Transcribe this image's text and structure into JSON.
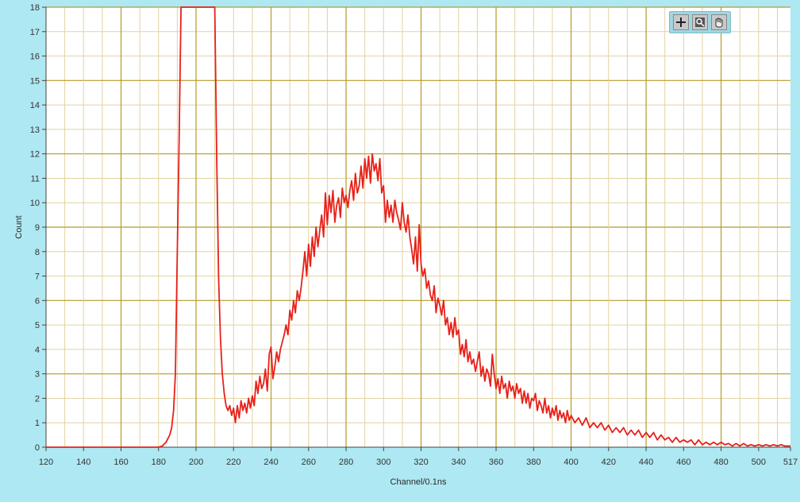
{
  "chart_data": {
    "type": "line",
    "title": "",
    "xlabel": "Channel/0.1ns",
    "ylabel": "Count",
    "xlim": [
      120,
      517
    ],
    "ylim": [
      0,
      18
    ],
    "grid": true,
    "x_ticks": [
      120,
      140,
      160,
      180,
      200,
      220,
      240,
      260,
      280,
      300,
      320,
      340,
      360,
      380,
      400,
      420,
      440,
      460,
      480,
      500,
      517
    ],
    "y_ticks": [
      0,
      1,
      2,
      3,
      4,
      5,
      6,
      7,
      8,
      9,
      10,
      11,
      12,
      13,
      14,
      15,
      16,
      17,
      18
    ],
    "series": [
      {
        "color": "#e8201a",
        "points": [
          [
            120,
            0
          ],
          [
            180,
            0
          ],
          [
            182,
            0.05
          ],
          [
            184,
            0.2
          ],
          [
            186,
            0.5
          ],
          [
            187,
            0.8
          ],
          [
            188,
            1.5
          ],
          [
            189,
            3
          ],
          [
            190,
            8
          ],
          [
            191,
            12.8
          ],
          [
            192,
            18
          ],
          [
            210,
            18
          ],
          [
            211,
            12
          ],
          [
            212,
            7
          ],
          [
            213,
            4.5
          ],
          [
            214,
            3
          ],
          [
            215,
            2.2
          ],
          [
            216,
            1.7
          ],
          [
            217,
            1.5
          ],
          [
            218,
            1.7
          ],
          [
            219,
            1.3
          ],
          [
            220,
            1.6
          ],
          [
            221,
            1.0
          ],
          [
            222,
            1.7
          ],
          [
            223,
            1.2
          ],
          [
            224,
            1.9
          ],
          [
            225,
            1.5
          ],
          [
            226,
            1.8
          ],
          [
            227,
            1.4
          ],
          [
            228,
            2.0
          ],
          [
            229,
            1.6
          ],
          [
            230,
            2.1
          ],
          [
            231,
            1.7
          ],
          [
            232,
            2.7
          ],
          [
            233,
            2.2
          ],
          [
            234,
            2.9
          ],
          [
            235,
            2.4
          ],
          [
            236,
            2.6
          ],
          [
            237,
            3.2
          ],
          [
            238,
            2.3
          ],
          [
            239,
            3.8
          ],
          [
            240,
            4.1
          ],
          [
            241,
            2.8
          ],
          [
            242,
            3.3
          ],
          [
            243,
            3.9
          ],
          [
            244,
            3.5
          ],
          [
            245,
            4.0
          ],
          [
            246,
            4.3
          ],
          [
            247,
            4.6
          ],
          [
            248,
            5.0
          ],
          [
            249,
            4.6
          ],
          [
            250,
            5.6
          ],
          [
            251,
            5.2
          ],
          [
            252,
            6.0
          ],
          [
            253,
            5.5
          ],
          [
            254,
            6.4
          ],
          [
            255,
            6.0
          ],
          [
            256,
            6.5
          ],
          [
            257,
            7.2
          ],
          [
            258,
            8.0
          ],
          [
            259,
            7.0
          ],
          [
            260,
            8.3
          ],
          [
            261,
            7.4
          ],
          [
            262,
            8.6
          ],
          [
            263,
            7.8
          ],
          [
            264,
            9.0
          ],
          [
            265,
            8.2
          ],
          [
            266,
            8.9
          ],
          [
            267,
            9.5
          ],
          [
            268,
            8.6
          ],
          [
            269,
            10.4
          ],
          [
            270,
            9.1
          ],
          [
            271,
            10.3
          ],
          [
            272,
            9.6
          ],
          [
            273,
            10.5
          ],
          [
            274,
            9.2
          ],
          [
            275,
            9.9
          ],
          [
            276,
            10.2
          ],
          [
            277,
            9.4
          ],
          [
            278,
            10.6
          ],
          [
            279,
            10.0
          ],
          [
            280,
            10.3
          ],
          [
            281,
            9.8
          ],
          [
            282,
            10.5
          ],
          [
            283,
            10.9
          ],
          [
            284,
            10.1
          ],
          [
            285,
            11.2
          ],
          [
            286,
            10.4
          ],
          [
            287,
            10.7
          ],
          [
            288,
            11.5
          ],
          [
            289,
            10.6
          ],
          [
            290,
            11.8
          ],
          [
            291,
            11.0
          ],
          [
            292,
            11.9
          ],
          [
            293,
            10.8
          ],
          [
            294,
            12.0
          ],
          [
            295,
            11.3
          ],
          [
            296,
            11.6
          ],
          [
            297,
            10.9
          ],
          [
            298,
            11.8
          ],
          [
            299,
            10.4
          ],
          [
            300,
            10.7
          ],
          [
            301,
            9.2
          ],
          [
            302,
            10.1
          ],
          [
            303,
            9.4
          ],
          [
            304,
            9.9
          ],
          [
            305,
            9.2
          ],
          [
            306,
            10.1
          ],
          [
            307,
            9.6
          ],
          [
            308,
            9.3
          ],
          [
            309,
            8.9
          ],
          [
            310,
            10.0
          ],
          [
            311,
            9.2
          ],
          [
            312,
            8.8
          ],
          [
            313,
            9.5
          ],
          [
            314,
            8.6
          ],
          [
            315,
            8.1
          ],
          [
            316,
            7.5
          ],
          [
            317,
            8.6
          ],
          [
            318,
            7.2
          ],
          [
            319,
            9.1
          ],
          [
            320,
            7.5
          ],
          [
            321,
            7.0
          ],
          [
            322,
            7.3
          ],
          [
            323,
            6.5
          ],
          [
            324,
            6.8
          ],
          [
            325,
            6.2
          ],
          [
            326,
            6.0
          ],
          [
            327,
            6.6
          ],
          [
            328,
            5.5
          ],
          [
            329,
            6.1
          ],
          [
            330,
            5.8
          ],
          [
            331,
            5.4
          ],
          [
            332,
            6.0
          ],
          [
            333,
            5.0
          ],
          [
            334,
            5.3
          ],
          [
            335,
            4.6
          ],
          [
            336,
            5.1
          ],
          [
            337,
            4.5
          ],
          [
            338,
            5.3
          ],
          [
            339,
            4.6
          ],
          [
            340,
            4.8
          ],
          [
            341,
            3.8
          ],
          [
            342,
            4.2
          ],
          [
            343,
            3.7
          ],
          [
            344,
            4.4
          ],
          [
            345,
            3.5
          ],
          [
            346,
            3.9
          ],
          [
            347,
            3.4
          ],
          [
            348,
            3.6
          ],
          [
            349,
            3.1
          ],
          [
            350,
            3.5
          ],
          [
            351,
            3.9
          ],
          [
            352,
            2.9
          ],
          [
            353,
            3.3
          ],
          [
            354,
            2.7
          ],
          [
            355,
            3.2
          ],
          [
            356,
            3.0
          ],
          [
            357,
            2.5
          ],
          [
            358,
            3.8
          ],
          [
            359,
            3.0
          ],
          [
            360,
            2.4
          ],
          [
            361,
            2.8
          ],
          [
            362,
            2.2
          ],
          [
            363,
            2.9
          ],
          [
            364,
            2.4
          ],
          [
            365,
            2.6
          ],
          [
            366,
            2.0
          ],
          [
            367,
            2.7
          ],
          [
            368,
            2.3
          ],
          [
            369,
            2.5
          ],
          [
            370,
            2.0
          ],
          [
            371,
            2.6
          ],
          [
            372,
            2.2
          ],
          [
            373,
            2.4
          ],
          [
            374,
            1.8
          ],
          [
            375,
            2.3
          ],
          [
            376,
            1.8
          ],
          [
            377,
            2.2
          ],
          [
            378,
            1.6
          ],
          [
            379,
            2.0
          ],
          [
            380,
            1.9
          ],
          [
            381,
            2.2
          ],
          [
            382,
            1.5
          ],
          [
            383,
            1.9
          ],
          [
            384,
            1.7
          ],
          [
            385,
            1.4
          ],
          [
            386,
            2.0
          ],
          [
            387,
            1.4
          ],
          [
            388,
            1.7
          ],
          [
            389,
            1.2
          ],
          [
            390,
            1.6
          ],
          [
            391,
            1.3
          ],
          [
            392,
            1.7
          ],
          [
            393,
            1.1
          ],
          [
            394,
            1.5
          ],
          [
            395,
            1.2
          ],
          [
            396,
            1.4
          ],
          [
            397,
            1.0
          ],
          [
            398,
            1.5
          ],
          [
            399,
            1.1
          ],
          [
            400,
            1.3
          ],
          [
            402,
            1.0
          ],
          [
            404,
            1.2
          ],
          [
            406,
            0.9
          ],
          [
            408,
            1.2
          ],
          [
            410,
            0.8
          ],
          [
            412,
            1.0
          ],
          [
            414,
            0.8
          ],
          [
            416,
            1.0
          ],
          [
            418,
            0.7
          ],
          [
            420,
            0.9
          ],
          [
            422,
            0.6
          ],
          [
            424,
            0.8
          ],
          [
            426,
            0.6
          ],
          [
            428,
            0.8
          ],
          [
            430,
            0.5
          ],
          [
            432,
            0.7
          ],
          [
            434,
            0.5
          ],
          [
            436,
            0.7
          ],
          [
            438,
            0.4
          ],
          [
            440,
            0.6
          ],
          [
            442,
            0.4
          ],
          [
            444,
            0.6
          ],
          [
            446,
            0.3
          ],
          [
            448,
            0.5
          ],
          [
            450,
            0.3
          ],
          [
            452,
            0.4
          ],
          [
            454,
            0.2
          ],
          [
            456,
            0.4
          ],
          [
            458,
            0.2
          ],
          [
            460,
            0.3
          ],
          [
            462,
            0.2
          ],
          [
            464,
            0.3
          ],
          [
            466,
            0.1
          ],
          [
            468,
            0.3
          ],
          [
            470,
            0.1
          ],
          [
            472,
            0.2
          ],
          [
            474,
            0.1
          ],
          [
            476,
            0.2
          ],
          [
            478,
            0.1
          ],
          [
            480,
            0.2
          ],
          [
            482,
            0.1
          ],
          [
            484,
            0.15
          ],
          [
            486,
            0.05
          ],
          [
            488,
            0.15
          ],
          [
            490,
            0.05
          ],
          [
            492,
            0.15
          ],
          [
            494,
            0.05
          ],
          [
            496,
            0.1
          ],
          [
            498,
            0.05
          ],
          [
            500,
            0.1
          ],
          [
            502,
            0.05
          ],
          [
            504,
            0.1
          ],
          [
            506,
            0.05
          ],
          [
            508,
            0.1
          ],
          [
            510,
            0.05
          ],
          [
            512,
            0.1
          ],
          [
            514,
            0.05
          ],
          [
            517,
            0.05
          ]
        ]
      }
    ]
  },
  "colors": {
    "frame_bg": "#aee8f2",
    "plot_bg": "#ffffff",
    "major_grid": "#b59a2a",
    "minor_grid": "#e2d3a0",
    "axis": "#444444"
  },
  "toolbar": {
    "tools": [
      {
        "name": "crosshair-cursor-icon"
      },
      {
        "name": "zoom-icon"
      },
      {
        "name": "pan-hand-icon"
      }
    ]
  }
}
